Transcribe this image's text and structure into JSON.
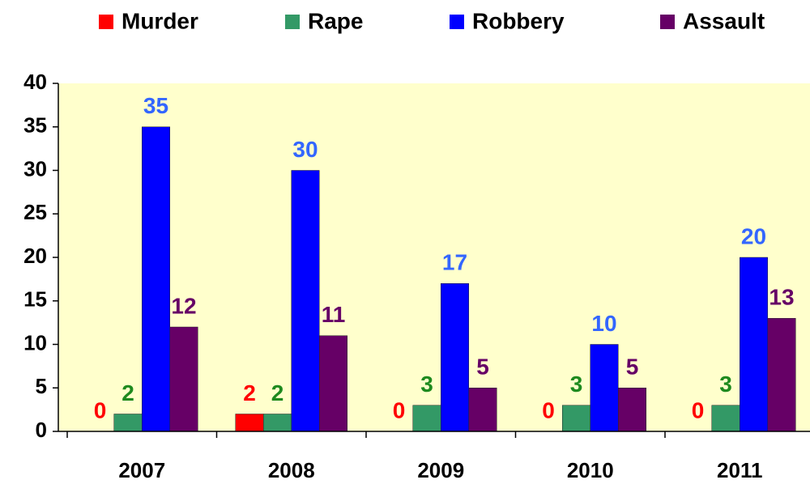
{
  "chart_data": {
    "type": "bar",
    "categories": [
      "2007",
      "2008",
      "2009",
      "2010",
      "2011"
    ],
    "series": [
      {
        "name": "Murder",
        "color": "#ff0000",
        "label_color": "#ff0000",
        "values": [
          0,
          2,
          0,
          0,
          0
        ]
      },
      {
        "name": "Rape",
        "color": "#339966",
        "label_color": "#1e8a1e",
        "values": [
          2,
          2,
          3,
          3,
          3
        ]
      },
      {
        "name": "Robbery",
        "color": "#0000ff",
        "label_color": "#3366ff",
        "values": [
          35,
          30,
          17,
          10,
          20
        ]
      },
      {
        "name": "Assault",
        "color": "#660066",
        "label_color": "#660066",
        "values": [
          12,
          11,
          5,
          5,
          13
        ]
      }
    ],
    "ylim": [
      0,
      40
    ],
    "yticks": [
      0,
      5,
      10,
      15,
      20,
      25,
      30,
      35,
      40
    ],
    "legend": "top",
    "background": "#ffffcc",
    "data_labels": true
  }
}
